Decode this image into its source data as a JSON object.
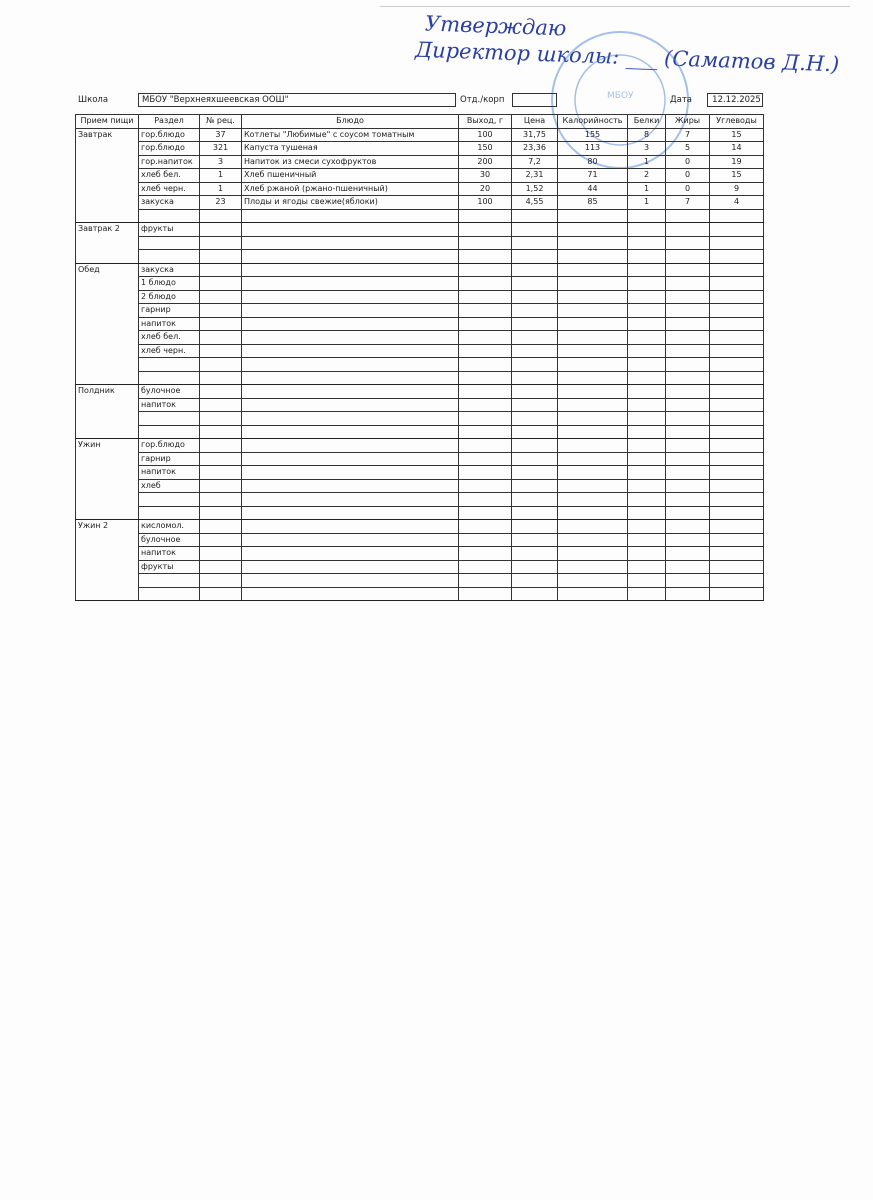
{
  "approval": {
    "line1": "Утверждаю",
    "line2": "Директор школы: ___ (Саматов Д.Н.)"
  },
  "stamp": {
    "center_text": "МБОУ"
  },
  "header": {
    "school_label": "Школа",
    "school_value": "МБОУ \"Верхнеяхшеевская ООШ\"",
    "dept_label": "Отд./корп",
    "dept_value": "",
    "date_label": "Дата",
    "date_value": "12.12.2025"
  },
  "columns": [
    "Прием пищи",
    "Раздел",
    "№ рец.",
    "Блюдо",
    "Выход, г",
    "Цена",
    "Калорийность",
    "Белки",
    "Жиры",
    "Углеводы"
  ],
  "meals": [
    {
      "name": "Завтрак",
      "rows": [
        [
          "гор.блюдо",
          "37",
          "Котлеты \"Любимые\" с соусом томатным",
          "100",
          "31,75",
          "155",
          "8",
          "7",
          "15"
        ],
        [
          "гор.блюдо",
          "321",
          "Капуста тушеная",
          "150",
          "23,36",
          "113",
          "3",
          "5",
          "14"
        ],
        [
          "гор.напиток",
          "3",
          "Напиток из смеси сухофруктов",
          "200",
          "7,2",
          "80",
          "1",
          "0",
          "19"
        ],
        [
          "хлеб бел.",
          "1",
          "Хлеб пшеничный",
          "30",
          "2,31",
          "71",
          "2",
          "0",
          "15"
        ],
        [
          "хлеб черн.",
          "1",
          "Хлеб ржаной (ржано-пшеничный)",
          "20",
          "1,52",
          "44",
          "1",
          "0",
          "9"
        ],
        [
          "закуска",
          "23",
          "Плоды и ягоды свежие(яблоки)",
          "100",
          "4,55",
          "85",
          "1",
          "7",
          "4"
        ],
        [
          "",
          "",
          "",
          "",
          "",
          "",
          "",
          "",
          ""
        ]
      ]
    },
    {
      "name": "Завтрак 2",
      "rows": [
        [
          "фрукты"
        ],
        [
          ""
        ],
        [
          ""
        ]
      ]
    },
    {
      "name": "Обед",
      "rows": [
        [
          "закуска"
        ],
        [
          "1 блюдо"
        ],
        [
          "2 блюдо"
        ],
        [
          "гарнир"
        ],
        [
          "напиток"
        ],
        [
          "хлеб бел."
        ],
        [
          "хлеб черн."
        ],
        [
          ""
        ],
        [
          ""
        ]
      ]
    },
    {
      "name": "Полдник",
      "rows": [
        [
          "булочное"
        ],
        [
          "напиток"
        ],
        [
          ""
        ],
        [
          ""
        ]
      ]
    },
    {
      "name": "Ужин",
      "rows": [
        [
          "гор.блюдо"
        ],
        [
          "гарнир"
        ],
        [
          "напиток"
        ],
        [
          "хлеб"
        ],
        [
          ""
        ],
        [
          ""
        ]
      ]
    },
    {
      "name": "Ужин 2",
      "rows": [
        [
          "кисломол."
        ],
        [
          "булочное"
        ],
        [
          "напиток"
        ],
        [
          "фрукты"
        ],
        [
          ""
        ],
        [
          ""
        ]
      ]
    }
  ]
}
